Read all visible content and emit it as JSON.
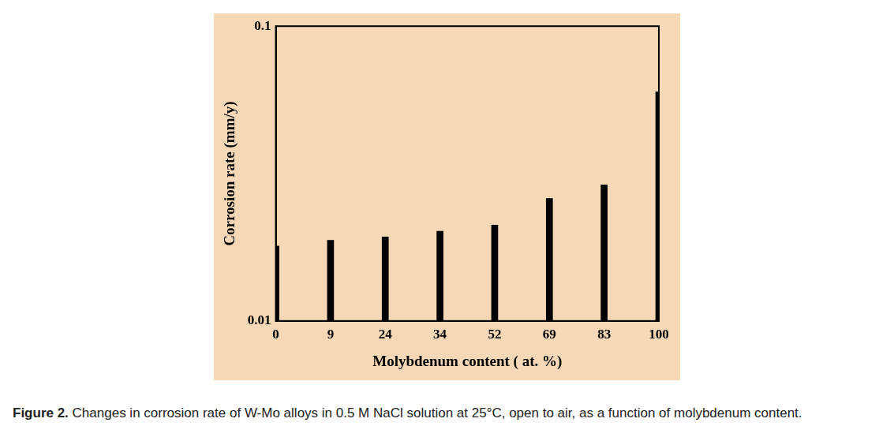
{
  "chart_data": {
    "type": "bar",
    "x_label": "Molybdenum content ( at. %)",
    "y_label": "Corrosion rate (mm/y)",
    "categories": [
      "0",
      "9",
      "24",
      "34",
      "52",
      "69",
      "83",
      "100"
    ],
    "values": [
      0.018,
      0.0188,
      0.0193,
      0.0202,
      0.0212,
      0.0261,
      0.029,
      0.06
    ],
    "color": "#000000",
    "log": "y",
    "ylim": [
      0.01,
      0.1
    ],
    "yticks": [
      0.01,
      0.1
    ],
    "grid": false
  },
  "caption": {
    "label": "Figure 2.",
    "text": "Changes in corrosion rate of W-Mo alloys in 0.5 M NaCl solution at 25°C, open to air, as a function of molybdenum content."
  }
}
